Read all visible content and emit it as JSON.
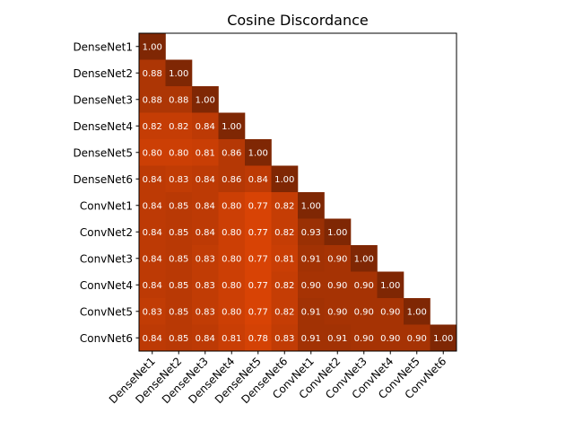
{
  "chart_data": {
    "type": "heatmap",
    "title": "Cosine Discordance",
    "xlabel": "",
    "ylabel": "",
    "row_labels": [
      "DenseNet1",
      "DenseNet2",
      "DenseNet3",
      "DenseNet4",
      "DenseNet5",
      "DenseNet6",
      "ConvNet1",
      "ConvNet2",
      "ConvNet3",
      "ConvNet4",
      "ConvNet5",
      "ConvNet6"
    ],
    "col_labels": [
      "DenseNet1",
      "DenseNet2",
      "DenseNet3",
      "DenseNet4",
      "DenseNet5",
      "DenseNet6",
      "ConvNet1",
      "ConvNet2",
      "ConvNet3",
      "ConvNet4",
      "ConvNet5",
      "ConvNet6"
    ],
    "lower_triangle_only": true,
    "grid": false,
    "colorscale": {
      "low_value": 0.77,
      "low_color": "#d84305",
      "high_value": 1.0,
      "high_color": "#7f2704"
    },
    "values": [
      [
        1.0
      ],
      [
        0.88,
        1.0
      ],
      [
        0.88,
        0.88,
        1.0
      ],
      [
        0.82,
        0.82,
        0.84,
        1.0
      ],
      [
        0.8,
        0.8,
        0.81,
        0.86,
        1.0
      ],
      [
        0.84,
        0.83,
        0.84,
        0.86,
        0.84,
        1.0
      ],
      [
        0.84,
        0.85,
        0.84,
        0.8,
        0.77,
        0.82,
        1.0
      ],
      [
        0.84,
        0.85,
        0.84,
        0.8,
        0.77,
        0.82,
        0.93,
        1.0
      ],
      [
        0.84,
        0.85,
        0.83,
        0.8,
        0.77,
        0.81,
        0.91,
        0.9,
        1.0
      ],
      [
        0.84,
        0.85,
        0.83,
        0.8,
        0.77,
        0.82,
        0.9,
        0.9,
        0.9,
        1.0
      ],
      [
        0.83,
        0.85,
        0.83,
        0.8,
        0.77,
        0.82,
        0.91,
        0.9,
        0.9,
        0.9,
        1.0
      ],
      [
        0.84,
        0.85,
        0.84,
        0.81,
        0.78,
        0.83,
        0.91,
        0.91,
        0.9,
        0.9,
        0.9,
        1.0
      ]
    ]
  }
}
